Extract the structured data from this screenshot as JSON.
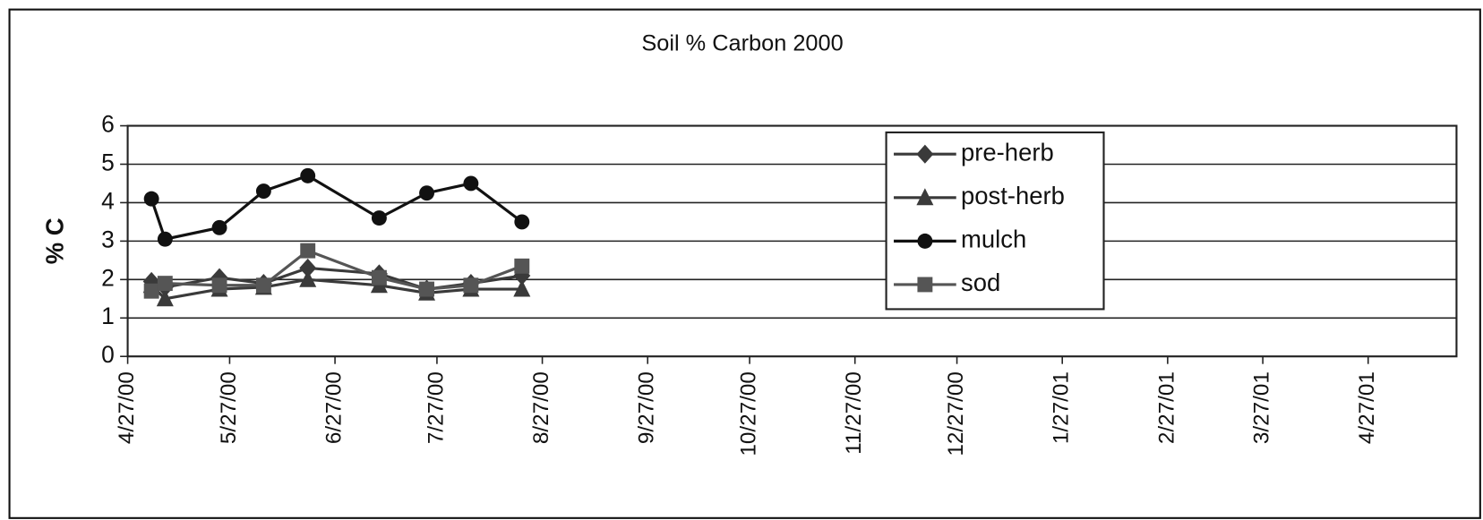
{
  "chart_data": {
    "type": "line",
    "title": "Soil % Carbon 2000",
    "y_label": "% C",
    "x": [
      "5/4/00",
      "5/8/00",
      "5/24/00",
      "6/6/00",
      "6/19/00",
      "7/10/00",
      "7/24/00",
      "8/6/00",
      "8/21/00"
    ],
    "series": [
      {
        "name": "pre-herb",
        "color": "#3a3a3a",
        "marker": "diamond",
        "values": [
          1.95,
          1.8,
          2.05,
          1.9,
          2.3,
          2.15,
          1.75,
          1.9,
          2.1
        ]
      },
      {
        "name": "post-herb",
        "color": "#3a3a3a",
        "marker": "triangle",
        "values": [
          1.85,
          1.5,
          1.75,
          1.8,
          2.0,
          1.85,
          1.65,
          1.75,
          1.75
        ]
      },
      {
        "name": "mulch",
        "color": "#111111",
        "marker": "circle",
        "values": [
          4.1,
          3.05,
          3.35,
          4.3,
          4.7,
          3.6,
          4.25,
          4.5,
          3.5
        ]
      },
      {
        "name": "sod",
        "color": "#555555",
        "marker": "square",
        "values": [
          1.7,
          1.9,
          1.85,
          1.85,
          2.75,
          2.05,
          1.75,
          1.85,
          2.35
        ]
      }
    ],
    "xlim": [
      "4/27/00",
      "5/23/01"
    ],
    "xticks": [
      "4/27/00",
      "5/27/00",
      "6/27/00",
      "7/27/00",
      "8/27/00",
      "9/27/00",
      "10/27/00",
      "11/27/00",
      "12/27/00",
      "1/27/01",
      "2/27/01",
      "3/27/01",
      "4/27/01"
    ],
    "ylim": [
      0,
      6
    ],
    "yticks": [
      0,
      1,
      2,
      3,
      4,
      5,
      6
    ],
    "grid": true,
    "legend": "upper right"
  }
}
